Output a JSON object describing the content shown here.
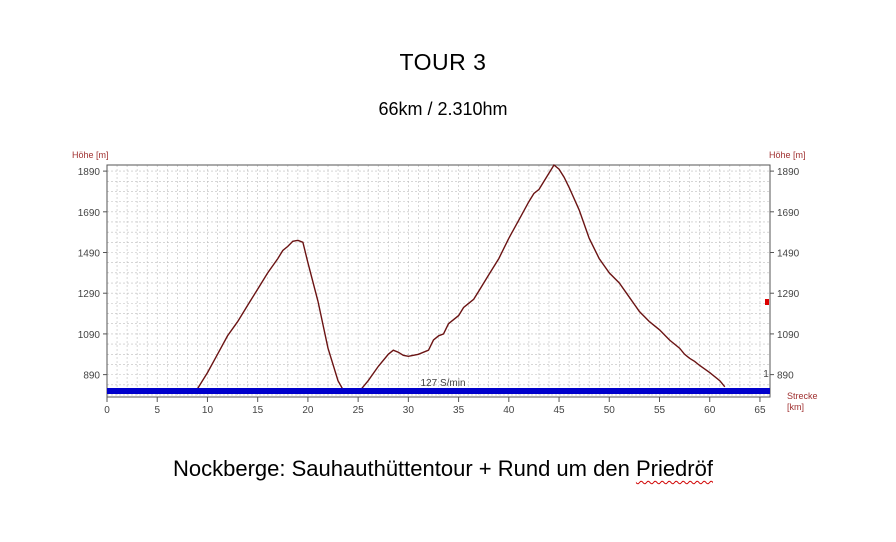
{
  "page": {
    "title": "TOUR 3",
    "subtitle": "66km / 2.310hm",
    "caption_before": "Nockberge: Sauhauthüttentour + Rund um den ",
    "caption_flagged_word": "Priedröf"
  },
  "colors": {
    "profile": "#6b1414",
    "speed_band": "#0000cc",
    "grid": "#bdbdbd",
    "axis": "#555555",
    "axis_title": "#a03030",
    "marker": "#dd0000"
  },
  "chart_data": {
    "type": "line",
    "title": "",
    "ylabel": "Höhe [m]",
    "ylabel_right": "Höhe [m]",
    "xlabel": "Strecke [km]",
    "xlabel_line1": "Strecke",
    "xlabel_line2": "[km]",
    "xlim": [
      0,
      66
    ],
    "ylim": [
      780,
      1920
    ],
    "x_ticks": [
      0,
      5,
      10,
      15,
      20,
      25,
      30,
      35,
      40,
      45,
      50,
      55,
      60,
      65
    ],
    "y_ticks": [
      890,
      1090,
      1290,
      1490,
      1690,
      1890
    ],
    "grid": true,
    "series": [
      {
        "x": [
          0,
          0.5,
          1,
          1.5,
          2,
          2.5,
          3,
          3.5,
          4,
          5,
          5.5,
          6,
          7,
          8,
          8.5,
          9,
          10,
          11,
          12,
          13,
          14,
          15,
          16,
          17,
          17.5,
          18,
          18.5,
          19,
          19.5,
          20,
          21,
          22,
          23,
          23.5,
          24,
          25,
          26,
          27,
          28,
          28.5,
          29,
          29.5,
          30,
          31,
          32,
          32.5,
          33,
          33.5,
          34,
          35,
          35.5,
          36,
          36.5,
          37,
          38,
          39,
          40,
          41,
          42,
          42.5,
          43,
          43.5,
          44,
          44.5,
          45,
          45.5,
          46,
          47,
          48,
          49,
          50,
          51,
          52,
          53,
          54,
          55,
          56,
          57,
          57.5,
          58,
          58.5,
          59,
          60,
          61,
          61.5
        ],
        "y": [
          800,
          808,
          812,
          820,
          812,
          816,
          814,
          805,
          798,
          805,
          812,
          808,
          802,
          798,
          800,
          820,
          900,
          990,
          1080,
          1150,
          1230,
          1310,
          1390,
          1460,
          1500,
          1520,
          1545,
          1550,
          1540,
          1440,
          1250,
          1020,
          860,
          815,
          800,
          800,
          860,
          930,
          990,
          1010,
          1000,
          985,
          980,
          990,
          1010,
          1060,
          1080,
          1090,
          1140,
          1180,
          1220,
          1240,
          1260,
          1300,
          1380,
          1460,
          1560,
          1650,
          1740,
          1780,
          1800,
          1840,
          1880,
          1920,
          1900,
          1860,
          1810,
          1700,
          1560,
          1460,
          1390,
          1340,
          1270,
          1200,
          1150,
          1110,
          1060,
          1020,
          990,
          970,
          955,
          935,
          900,
          860,
          830
        ]
      }
    ],
    "speed_band_label": "127 S/min",
    "corner_label": "1"
  }
}
